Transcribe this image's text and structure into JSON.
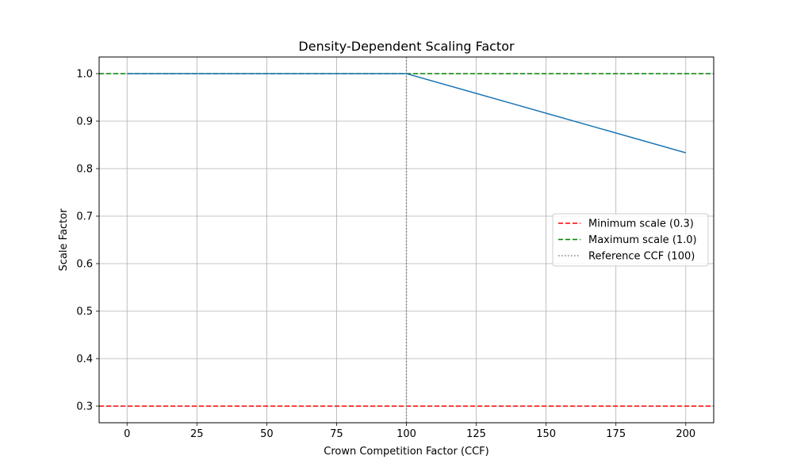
{
  "chart_data": {
    "type": "line",
    "title": "Density-Dependent Scaling Factor",
    "xlabel": "Crown Competition Factor (CCF)",
    "ylabel": "Scale Factor",
    "xlim": [
      -10,
      210
    ],
    "ylim": [
      0.265,
      1.035
    ],
    "xticks": [
      0,
      25,
      50,
      75,
      100,
      125,
      150,
      175,
      200
    ],
    "yticks": [
      0.3,
      0.4,
      0.5,
      0.6,
      0.7,
      0.8,
      0.9,
      1.0
    ],
    "xtick_labels": [
      "0",
      "25",
      "50",
      "75",
      "100",
      "125",
      "150",
      "175",
      "200"
    ],
    "ytick_labels": [
      "0.3",
      "0.4",
      "0.5",
      "0.6",
      "0.7",
      "0.8",
      "0.9",
      "1.0"
    ],
    "grid": true,
    "series": [
      {
        "color": "#1f77b4",
        "x": [
          0,
          25,
          50,
          75,
          100,
          125,
          150,
          175,
          200
        ],
        "y": [
          1.0,
          1.0,
          1.0,
          1.0,
          1.0,
          0.9583,
          0.9167,
          0.875,
          0.8333
        ]
      }
    ],
    "reference_lines": [
      {
        "name": "Minimum scale (0.3)",
        "orientation": "horizontal",
        "value": 0.3,
        "color": "#ff0000",
        "style": "dashed"
      },
      {
        "name": "Maximum scale (1.0)",
        "orientation": "horizontal",
        "value": 1.0,
        "color": "#008000",
        "style": "dashed"
      },
      {
        "name": "Reference CCF (100)",
        "orientation": "vertical",
        "value": 100,
        "color": "#808080",
        "style": "dotted"
      }
    ],
    "legend": {
      "placement": "center-right",
      "entries": [
        "Minimum scale (0.3)",
        "Maximum scale (1.0)",
        "Reference CCF (100)"
      ]
    }
  }
}
